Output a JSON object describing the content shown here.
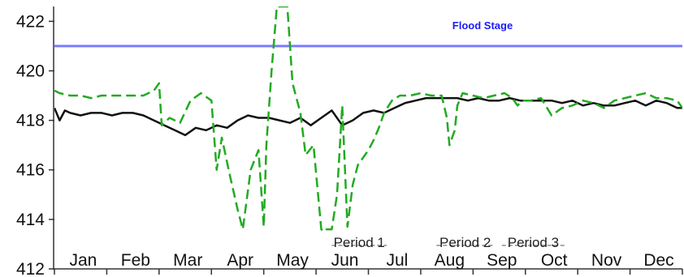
{
  "chart_data": {
    "type": "line",
    "title": "",
    "xlabel": "",
    "ylabel": "",
    "ylim": [
      412,
      422.6
    ],
    "yticks": [
      412,
      414,
      416,
      418,
      420,
      422
    ],
    "categories": [
      "Jan",
      "Feb",
      "Mar",
      "Apr",
      "May",
      "Jun",
      "Jul",
      "Aug",
      "Sep",
      "Oct",
      "Nov",
      "Dec"
    ],
    "grid": false,
    "flood_stage": {
      "label": "Flood Stage",
      "value": 421,
      "color": "#7b7bff"
    },
    "periods": [
      {
        "label": "Period 1",
        "start": 5.3,
        "end": 6.35
      },
      {
        "label": "Period 2",
        "start": 7.3,
        "end": 8.4
      },
      {
        "label": "Period 3",
        "start": 8.55,
        "end": 9.75
      }
    ],
    "series": [
      {
        "style": "solid",
        "color": "#111111",
        "x": [
          0,
          0.1,
          0.2,
          0.3,
          0.5,
          0.7,
          0.9,
          1.1,
          1.3,
          1.5,
          1.7,
          1.9,
          2.1,
          2.3,
          2.5,
          2.7,
          2.9,
          3.1,
          3.3,
          3.5,
          3.7,
          3.9,
          4.1,
          4.3,
          4.5,
          4.7,
          4.9,
          5.1,
          5.3,
          5.5,
          5.7,
          5.9,
          6.1,
          6.3,
          6.5,
          6.7,
          6.9,
          7.1,
          7.3,
          7.5,
          7.7,
          7.9,
          8.1,
          8.3,
          8.5,
          8.7,
          8.9,
          9.1,
          9.3,
          9.5,
          9.7,
          9.9,
          10.1,
          10.3,
          10.5,
          10.7,
          10.9,
          11.1,
          11.3,
          11.5,
          11.7,
          11.9,
          12.0
        ],
        "y": [
          418.5,
          418.0,
          418.4,
          418.3,
          418.2,
          418.3,
          418.3,
          418.2,
          418.3,
          418.3,
          418.2,
          418.0,
          417.8,
          417.6,
          417.4,
          417.7,
          417.6,
          417.8,
          417.7,
          418.0,
          418.2,
          418.1,
          418.1,
          418.0,
          417.9,
          418.1,
          417.8,
          418.1,
          418.4,
          417.8,
          418.0,
          418.3,
          418.4,
          418.3,
          418.5,
          418.7,
          418.8,
          418.9,
          418.9,
          418.9,
          418.9,
          418.8,
          418.9,
          418.8,
          418.8,
          418.9,
          418.8,
          418.8,
          418.8,
          418.8,
          418.7,
          418.8,
          418.6,
          418.7,
          418.6,
          418.6,
          418.7,
          418.8,
          418.6,
          418.8,
          418.7,
          418.5,
          418.5
        ]
      },
      {
        "style": "dashed",
        "color": "#22aa22",
        "x": [
          0,
          0.1,
          0.3,
          0.5,
          0.7,
          0.9,
          1.1,
          1.3,
          1.5,
          1.7,
          1.9,
          2.0,
          2.05,
          2.2,
          2.4,
          2.6,
          2.8,
          3.0,
          3.1,
          3.2,
          3.35,
          3.5,
          3.6,
          3.75,
          3.9,
          4.0,
          4.05,
          4.15,
          4.25,
          4.35,
          4.45,
          4.55,
          4.7,
          4.8,
          4.95,
          5.1,
          5.15,
          5.2,
          5.3,
          5.4,
          5.5,
          5.6,
          5.7,
          5.8,
          5.9,
          6.0,
          6.1,
          6.2,
          6.3,
          6.45,
          6.6,
          6.8,
          7.0,
          7.2,
          7.3,
          7.4,
          7.5,
          7.55,
          7.65,
          7.7,
          7.8,
          8.0,
          8.2,
          8.4,
          8.6,
          8.75,
          8.85,
          8.95,
          9.1,
          9.3,
          9.5,
          9.7,
          9.9,
          10.1,
          10.3,
          10.5,
          10.7,
          10.9,
          11.1,
          11.3,
          11.5,
          11.7,
          11.9,
          12.0
        ],
        "y": [
          419.2,
          419.1,
          419.0,
          419.0,
          418.9,
          419.0,
          419.0,
          419.0,
          419.0,
          419.0,
          419.2,
          419.5,
          417.8,
          418.1,
          417.9,
          418.8,
          419.1,
          418.8,
          416.0,
          417.3,
          415.8,
          414.4,
          413.6,
          416.0,
          416.8,
          413.7,
          417.0,
          420.0,
          422.6,
          422.6,
          422.6,
          419.5,
          418.3,
          416.6,
          417.0,
          413.6,
          413.5,
          413.6,
          413.6,
          415.0,
          418.6,
          413.7,
          415.4,
          416.2,
          416.5,
          416.8,
          417.2,
          417.7,
          418.3,
          418.8,
          419.0,
          419.0,
          419.1,
          419.0,
          419.0,
          419.0,
          418.1,
          417.0,
          417.6,
          418.6,
          419.1,
          419.0,
          418.9,
          419.0,
          419.1,
          418.9,
          418.6,
          418.8,
          418.8,
          418.9,
          418.2,
          418.5,
          418.6,
          418.8,
          418.7,
          418.5,
          418.8,
          418.9,
          419.0,
          419.1,
          418.9,
          418.9,
          418.8,
          418.5
        ]
      }
    ]
  }
}
